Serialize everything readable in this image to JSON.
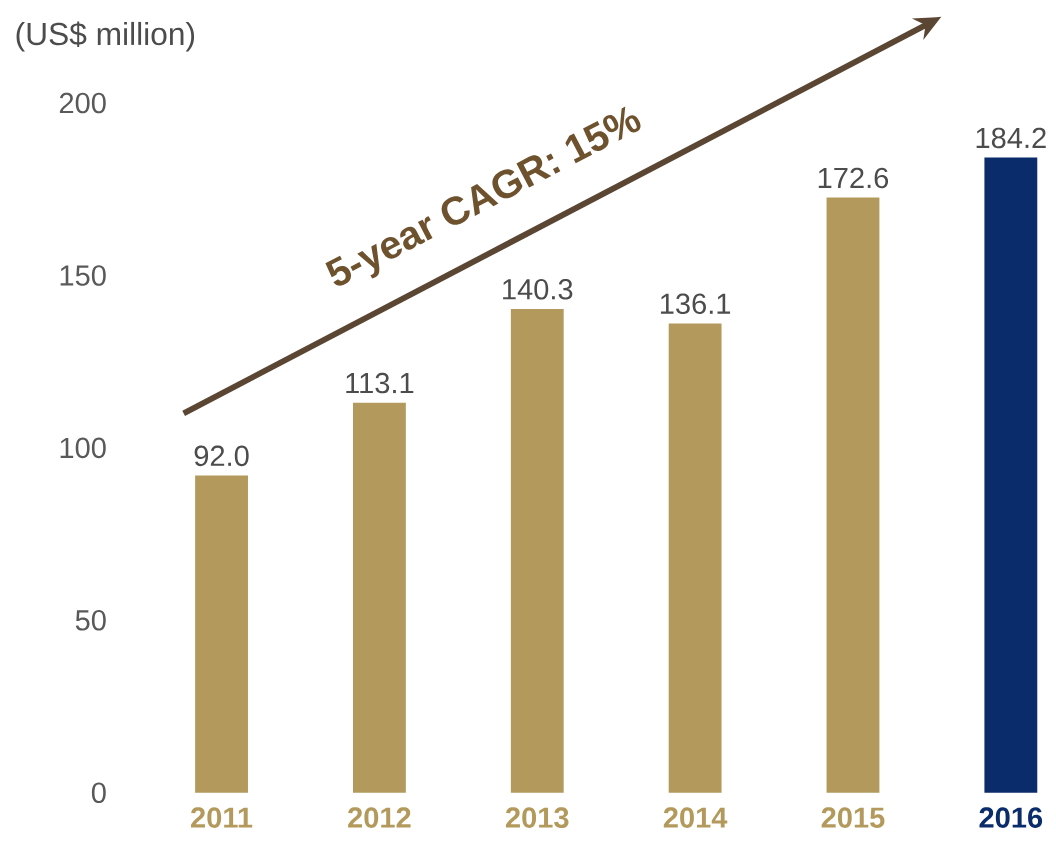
{
  "chart_data": {
    "type": "bar",
    "ylabel": "(US$ million)",
    "categories": [
      "2011",
      "2012",
      "2013",
      "2014",
      "2015",
      "2016"
    ],
    "values": [
      92.0,
      113.1,
      140.3,
      136.1,
      172.6,
      184.2
    ],
    "colors": [
      "#b39a5c",
      "#b39a5c",
      "#b39a5c",
      "#b39a5c",
      "#b39a5c",
      "#0b2c6b"
    ],
    "ylim": [
      0,
      200
    ],
    "yticks": [
      0,
      50,
      100,
      150,
      200
    ],
    "value_labels": [
      "92.0",
      "113.1",
      "140.3",
      "136.1",
      "172.6",
      "184.2"
    ],
    "grid": false,
    "annotations": [
      "5-year CAGR: 15%"
    ]
  }
}
